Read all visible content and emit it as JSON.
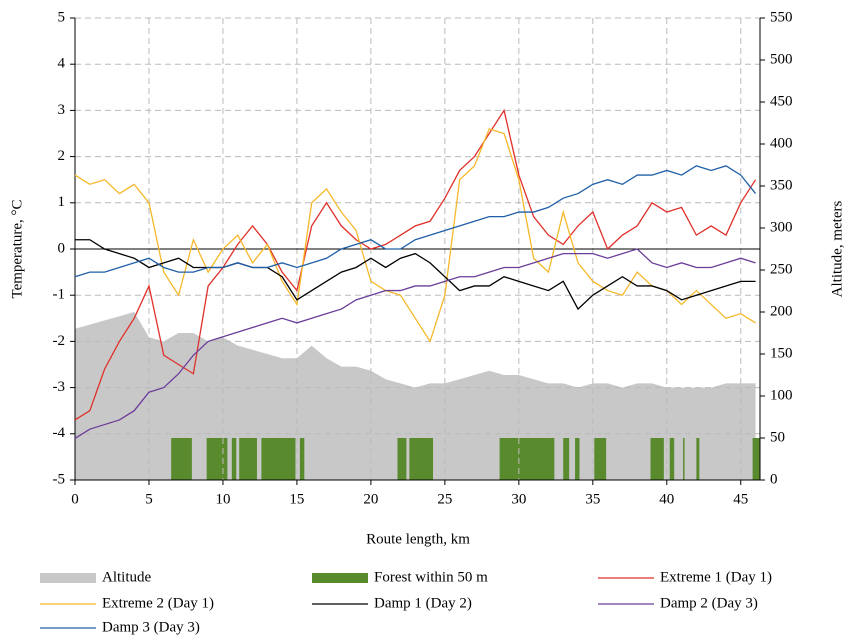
{
  "chart_data": {
    "type": "line",
    "xlabel": "Route length, km",
    "ylabel": "Temperature, °C",
    "y2label": "Altitude, meters",
    "xlim": [
      0,
      46.3
    ],
    "xticks": [
      0,
      5,
      10,
      15,
      20,
      25,
      30,
      35,
      40,
      45
    ],
    "ylim": [
      -5,
      5
    ],
    "yticks": [
      -5,
      -4,
      -3,
      -2,
      -1,
      0,
      1,
      2,
      3,
      4,
      5
    ],
    "y2lim": [
      0,
      550
    ],
    "y2ticks": [
      0,
      50,
      100,
      150,
      200,
      250,
      300,
      350,
      400,
      450,
      500,
      550
    ],
    "grid": true,
    "x": [
      0,
      1,
      2,
      3,
      4,
      5,
      6,
      7,
      8,
      9,
      10,
      11,
      12,
      13,
      14,
      15,
      16,
      17,
      18,
      19,
      20,
      21,
      22,
      23,
      24,
      25,
      26,
      27,
      28,
      29,
      30,
      31,
      32,
      33,
      34,
      35,
      36,
      37,
      38,
      39,
      40,
      41,
      42,
      43,
      44,
      45,
      46
    ],
    "altitude": {
      "name": "Altitude",
      "color": "#c8c8c8",
      "axis": "y2",
      "values": [
        180,
        185,
        190,
        195,
        200,
        170,
        165,
        175,
        175,
        165,
        170,
        160,
        155,
        150,
        145,
        145,
        160,
        145,
        135,
        135,
        130,
        120,
        115,
        110,
        115,
        115,
        120,
        125,
        130,
        125,
        125,
        120,
        115,
        115,
        110,
        115,
        115,
        110,
        115,
        115,
        110,
        110,
        110,
        110,
        115,
        115,
        115
      ]
    },
    "forest": {
      "name": "Forest within 50 m",
      "color": "#5a8a2e",
      "axis": "y2",
      "height": 50,
      "intervals": [
        [
          6.5,
          7.9
        ],
        [
          8.9,
          10.3
        ],
        [
          10.6,
          10.9
        ],
        [
          11.1,
          12.3
        ],
        [
          12.6,
          14.9
        ],
        [
          15.2,
          15.5
        ],
        [
          21.8,
          22.4
        ],
        [
          22.6,
          24.2
        ],
        [
          28.7,
          32.4
        ],
        [
          33.0,
          33.4
        ],
        [
          33.8,
          34.1
        ],
        [
          35.1,
          35.9
        ],
        [
          38.9,
          39.8
        ],
        [
          40.2,
          40.5
        ],
        [
          41.1,
          41.2
        ],
        [
          42.0,
          42.2
        ],
        [
          45.8,
          46.3
        ]
      ]
    },
    "series": [
      {
        "name": "Extreme 1 (Day 1)",
        "color": "#e0302a",
        "values": [
          -3.7,
          -3.5,
          -2.6,
          -2.0,
          -1.5,
          -0.8,
          -2.3,
          -2.5,
          -2.7,
          -0.8,
          -0.4,
          0.1,
          0.5,
          0.1,
          -0.5,
          -0.9,
          0.5,
          1.0,
          0.5,
          0.2,
          0.0,
          0.1,
          0.3,
          0.5,
          0.6,
          1.1,
          1.7,
          2.0,
          2.5,
          3.0,
          1.6,
          0.7,
          0.3,
          0.1,
          0.5,
          0.8,
          0.0,
          0.3,
          0.5,
          1.0,
          0.8,
          0.9,
          0.3,
          0.5,
          0.3,
          1.0,
          1.5
        ]
      },
      {
        "name": "Extreme 2 (Day 1)",
        "color": "#f5b82a",
        "values": [
          1.6,
          1.4,
          1.5,
          1.2,
          1.4,
          1.0,
          -0.5,
          -1.0,
          0.2,
          -0.5,
          0.0,
          0.3,
          -0.3,
          0.1,
          -0.7,
          -1.2,
          1.0,
          1.3,
          0.8,
          0.4,
          -0.7,
          -0.9,
          -1.0,
          -1.5,
          -2.0,
          -1.0,
          1.5,
          1.8,
          2.6,
          2.5,
          1.5,
          -0.2,
          -0.5,
          0.8,
          -0.3,
          -0.7,
          -0.9,
          -1.0,
          -0.5,
          -0.8,
          -0.9,
          -1.2,
          -0.9,
          -1.2,
          -1.5,
          -1.4,
          -1.6
        ]
      },
      {
        "name": "Damp 1 (Day 2)",
        "color": "#000000",
        "values": [
          0.2,
          0.2,
          0.0,
          -0.1,
          -0.2,
          -0.4,
          -0.3,
          -0.2,
          -0.4,
          -0.4,
          -0.4,
          -0.3,
          -0.4,
          -0.4,
          -0.6,
          -1.1,
          -0.9,
          -0.7,
          -0.5,
          -0.4,
          -0.2,
          -0.4,
          -0.2,
          -0.1,
          -0.3,
          -0.6,
          -0.9,
          -0.8,
          -0.8,
          -0.6,
          -0.7,
          -0.8,
          -0.9,
          -0.7,
          -1.3,
          -1.0,
          -0.8,
          -0.6,
          -0.8,
          -0.8,
          -0.9,
          -1.1,
          -1.0,
          -0.9,
          -0.8,
          -0.7,
          -0.7
        ]
      },
      {
        "name": "Damp 2 (Day 3)",
        "color": "#6a3d9a",
        "values": [
          -4.1,
          -3.9,
          -3.8,
          -3.7,
          -3.5,
          -3.1,
          -3.0,
          -2.7,
          -2.3,
          -2.0,
          -1.9,
          -1.8,
          -1.7,
          -1.6,
          -1.5,
          -1.6,
          -1.5,
          -1.4,
          -1.3,
          -1.1,
          -1.0,
          -0.9,
          -0.9,
          -0.8,
          -0.8,
          -0.7,
          -0.6,
          -0.6,
          -0.5,
          -0.4,
          -0.4,
          -0.3,
          -0.2,
          -0.1,
          -0.1,
          -0.1,
          -0.2,
          -0.1,
          0.0,
          -0.3,
          -0.4,
          -0.3,
          -0.4,
          -0.4,
          -0.3,
          -0.2,
          -0.3
        ]
      },
      {
        "name": "Damp 3 (Day 3)",
        "color": "#1f5fa8",
        "values": [
          -0.6,
          -0.5,
          -0.5,
          -0.4,
          -0.3,
          -0.2,
          -0.4,
          -0.5,
          -0.5,
          -0.4,
          -0.4,
          -0.3,
          -0.4,
          -0.4,
          -0.3,
          -0.4,
          -0.3,
          -0.2,
          0.0,
          0.1,
          0.2,
          0.0,
          0.0,
          0.2,
          0.3,
          0.4,
          0.5,
          0.6,
          0.7,
          0.7,
          0.8,
          0.8,
          0.9,
          1.1,
          1.2,
          1.4,
          1.5,
          1.4,
          1.6,
          1.6,
          1.7,
          1.6,
          1.8,
          1.7,
          1.8,
          1.6,
          1.2
        ]
      }
    ]
  }
}
